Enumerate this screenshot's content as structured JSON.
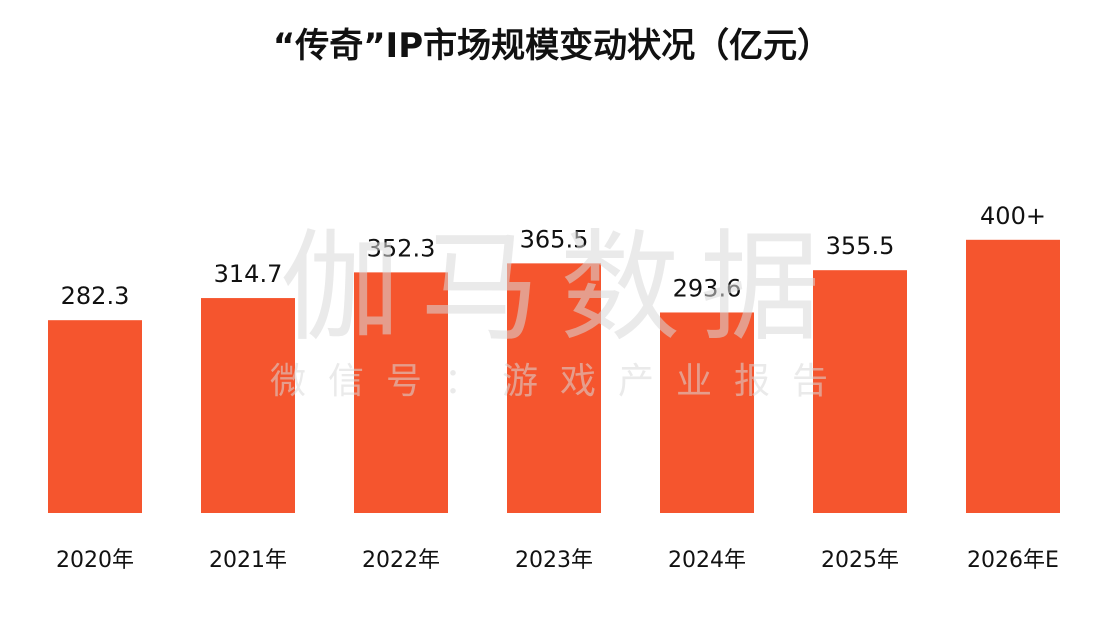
{
  "chart_data": {
    "type": "bar",
    "title": "“传奇”IP市场规模变动状况（亿元）",
    "categories": [
      "2020年",
      "2021年",
      "2022年",
      "2023年",
      "2024年",
      "2025年",
      "2026年E"
    ],
    "values": [
      282.3,
      314.7,
      352.3,
      365.5,
      293.6,
      355.5,
      400
    ],
    "value_labels": [
      "282.3",
      "314.7",
      "352.3",
      "365.5",
      "293.6",
      "355.5",
      "400+"
    ],
    "bar_color": "#f5552e",
    "xlabel": "",
    "ylabel": "",
    "grid": false,
    "legend": "none"
  },
  "watermark": {
    "main": "伽马数据",
    "sub": "微信号：游戏产业报告"
  }
}
